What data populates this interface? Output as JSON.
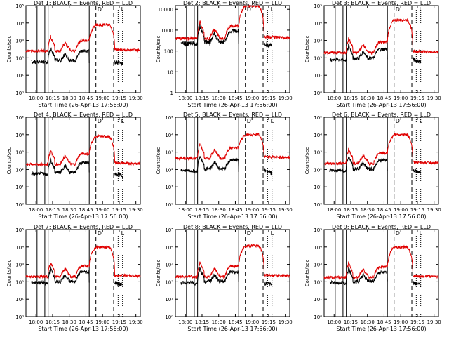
{
  "figure": {
    "background": "#ffffff",
    "axis_color": "#000000",
    "events_color": "#000000",
    "lld_color": "#e00000"
  },
  "chart_data": [
    {
      "type": "line",
      "title": "Det 1: BLACK = Events, RED = LLD",
      "xlabel": "Start Time (26-Apr-13 17:56:00)",
      "ylabel": "Counts/sec",
      "yscale": "log",
      "ylim": [
        1,
        100000
      ],
      "ytick_labels": [
        "10⁰",
        "10¹",
        "10²",
        "10³",
        "10⁴",
        "10⁵"
      ],
      "xtick_labels": [
        "18:00",
        "18:15",
        "18:30",
        "18:45",
        "19:00",
        "19:15",
        "19:30"
      ],
      "xlim_minutes": [
        -5,
        98
      ],
      "events_baseline": 60,
      "lld_baseline": 250,
      "flare_level": 8000,
      "solid_lines_min": [
        5,
        12,
        15,
        52
      ],
      "dashed_lines_min": [
        58,
        74
      ],
      "dotted_lines_min": [
        78,
        82
      ],
      "markers": [
        "D",
        "L"
      ],
      "series": [
        {
          "name": "Events"
        },
        {
          "name": "LLD"
        }
      ]
    },
    {
      "type": "line",
      "title": "Det 2: BLACK = Events, RED = LLD",
      "xlabel": "Start Time (26-Apr-13 17:56:00)",
      "ylabel": "Counts/sec",
      "yscale": "log",
      "ylim": [
        1,
        15000
      ],
      "ytick_labels": [
        "1",
        "10",
        "100",
        "1000",
        "10000"
      ],
      "xtick_labels": [
        "18:00",
        "18:15",
        "18:30",
        "18:45",
        "19:00",
        "19:15",
        "19:30"
      ],
      "xlim_minutes": [
        -5,
        98
      ],
      "events_baseline": 230,
      "lld_baseline": 400,
      "flare_level": 15000,
      "solid_lines_min": [
        5,
        12,
        15,
        52
      ],
      "dashed_lines_min": [
        58,
        74
      ],
      "dotted_lines_min": [
        78,
        82
      ],
      "markers": [
        "D",
        "L"
      ],
      "series": [
        {
          "name": "Events"
        },
        {
          "name": "LLD"
        }
      ]
    },
    {
      "type": "line",
      "title": "Det 3: BLACK = Events, RED = LLD",
      "xlabel": "Start Time (26-Apr-13 17:56:00)",
      "ylabel": "Counts/sec",
      "yscale": "log",
      "ylim": [
        1,
        100000
      ],
      "ytick_labels": [
        "10⁰",
        "10¹",
        "10²",
        "10³",
        "10⁴",
        "10⁵"
      ],
      "xtick_labels": [
        "18:00",
        "18:15",
        "18:30",
        "18:45",
        "19:00",
        "19:15",
        "19:30"
      ],
      "xlim_minutes": [
        -5,
        98
      ],
      "events_baseline": 80,
      "lld_baseline": 200,
      "flare_level": 15000,
      "solid_lines_min": [
        5,
        12,
        15,
        52
      ],
      "dashed_lines_min": [
        58,
        74
      ],
      "dotted_lines_min": [
        78,
        82
      ],
      "markers": [
        "D",
        "L"
      ],
      "series": [
        {
          "name": "Events"
        },
        {
          "name": "LLD"
        }
      ]
    },
    {
      "type": "line",
      "title": "Det 4: BLACK = Events, RED = LLD",
      "xlabel": "Start Time (26-Apr-13 17:56:00)",
      "ylabel": "Counts/sec",
      "yscale": "log",
      "ylim": [
        1,
        100000
      ],
      "ytick_labels": [
        "10⁰",
        "10¹",
        "10²",
        "10³",
        "10⁴",
        "10⁵"
      ],
      "xtick_labels": [
        "18:00",
        "18:15",
        "18:30",
        "18:45",
        "19:00",
        "19:15",
        "19:30"
      ],
      "xlim_minutes": [
        -5,
        98
      ],
      "events_baseline": 60,
      "lld_baseline": 200,
      "flare_level": 8000,
      "solid_lines_min": [
        5,
        12,
        15,
        52
      ],
      "dashed_lines_min": [
        58,
        74
      ],
      "dotted_lines_min": [
        78,
        82
      ],
      "markers": [
        "D",
        "L"
      ],
      "series": [
        {
          "name": "Events"
        },
        {
          "name": "LLD"
        }
      ]
    },
    {
      "type": "line",
      "title": "Det 5: BLACK = Events, RED = LLD",
      "xlabel": "Start Time (26-Apr-13 17:56:00)",
      "ylabel": "Counts/sec",
      "yscale": "log",
      "ylim": [
        1,
        100000
      ],
      "ytick_labels": [
        "10⁰",
        "10¹",
        "10²",
        "10³",
        "10⁴",
        "10⁵"
      ],
      "xtick_labels": [
        "18:00",
        "18:15",
        "18:30",
        "18:45",
        "19:00",
        "19:15",
        "19:30"
      ],
      "xlim_minutes": [
        -5,
        98
      ],
      "events_baseline": 90,
      "lld_baseline": 450,
      "flare_level": 10000,
      "solid_lines_min": [
        5,
        12,
        15,
        52
      ],
      "dashed_lines_min": [
        58,
        74
      ],
      "dotted_lines_min": [
        78,
        82
      ],
      "markers": [
        "D",
        "L"
      ],
      "series": [
        {
          "name": "Events"
        },
        {
          "name": "LLD"
        }
      ]
    },
    {
      "type": "line",
      "title": "Det 6: BLACK = Events, RED = LLD",
      "xlabel": "Start Time (26-Apr-13 17:56:00)",
      "ylabel": "Counts/sec",
      "yscale": "log",
      "ylim": [
        1,
        100000
      ],
      "ytick_labels": [
        "10⁰",
        "10¹",
        "10²",
        "10³",
        "10⁴",
        "10⁵"
      ],
      "xtick_labels": [
        "18:00",
        "18:15",
        "18:30",
        "18:45",
        "19:00",
        "19:15",
        "19:30"
      ],
      "xlim_minutes": [
        -5,
        98
      ],
      "events_baseline": 90,
      "lld_baseline": 220,
      "flare_level": 10000,
      "solid_lines_min": [
        5,
        12,
        15,
        52
      ],
      "dashed_lines_min": [
        58,
        74
      ],
      "dotted_lines_min": [
        78,
        82
      ],
      "markers": [
        "D",
        "L"
      ],
      "series": [
        {
          "name": "Events"
        },
        {
          "name": "LLD"
        }
      ]
    },
    {
      "type": "line",
      "title": "Det 7: BLACK = Events, RED = LLD",
      "xlabel": "Start Time (26-Apr-13 17:56:00)",
      "ylabel": "Counts/sec",
      "yscale": "log",
      "ylim": [
        1,
        100000
      ],
      "ytick_labels": [
        "10⁰",
        "10¹",
        "10²",
        "10³",
        "10⁴",
        "10⁵"
      ],
      "xtick_labels": [
        "18:00",
        "18:15",
        "18:30",
        "18:45",
        "19:00",
        "19:15",
        "19:30"
      ],
      "xlim_minutes": [
        -5,
        98
      ],
      "events_baseline": 90,
      "lld_baseline": 200,
      "flare_level": 10000,
      "solid_lines_min": [
        5,
        12,
        15,
        52
      ],
      "dashed_lines_min": [
        58,
        74
      ],
      "dotted_lines_min": [
        78,
        82
      ],
      "markers": [
        "D",
        "L"
      ],
      "series": [
        {
          "name": "Events"
        },
        {
          "name": "LLD"
        }
      ]
    },
    {
      "type": "line",
      "title": "Det 8: BLACK = Events, RED = LLD",
      "xlabel": "Start Time (26-Apr-13 17:56:00)",
      "ylabel": "Counts/sec",
      "yscale": "log",
      "ylim": [
        1,
        100000
      ],
      "ytick_labels": [
        "10⁰",
        "10¹",
        "10²",
        "10³",
        "10⁴",
        "10⁵"
      ],
      "xtick_labels": [
        "18:00",
        "18:15",
        "18:30",
        "18:45",
        "19:00",
        "19:15",
        "19:30"
      ],
      "xlim_minutes": [
        -5,
        98
      ],
      "events_baseline": 90,
      "lld_baseline": 200,
      "flare_level": 12000,
      "solid_lines_min": [
        5,
        12,
        15,
        52
      ],
      "dashed_lines_min": [
        58,
        74
      ],
      "dotted_lines_min": [
        78,
        82
      ],
      "markers": [
        "D",
        "L"
      ],
      "series": [
        {
          "name": "Events"
        },
        {
          "name": "LLD"
        }
      ]
    },
    {
      "type": "line",
      "title": "Det 9: BLACK = Events, RED = LLD",
      "xlabel": "Start Time (26-Apr-13 17:56:00)",
      "ylabel": "Counts/sec",
      "yscale": "log",
      "ylim": [
        1,
        100000
      ],
      "ytick_labels": [
        "10⁰",
        "10¹",
        "10²",
        "10³",
        "10⁴",
        "10⁵"
      ],
      "xtick_labels": [
        "18:00",
        "18:15",
        "18:30",
        "18:45",
        "19:00",
        "19:15",
        "19:30"
      ],
      "xlim_minutes": [
        -5,
        98
      ],
      "events_baseline": 90,
      "lld_baseline": 180,
      "flare_level": 10000,
      "solid_lines_min": [
        5,
        12,
        15,
        52
      ],
      "dashed_lines_min": [
        58,
        74
      ],
      "dotted_lines_min": [
        78,
        82
      ],
      "markers": [
        "D",
        "L"
      ],
      "series": [
        {
          "name": "Events"
        },
        {
          "name": "LLD"
        }
      ]
    }
  ]
}
